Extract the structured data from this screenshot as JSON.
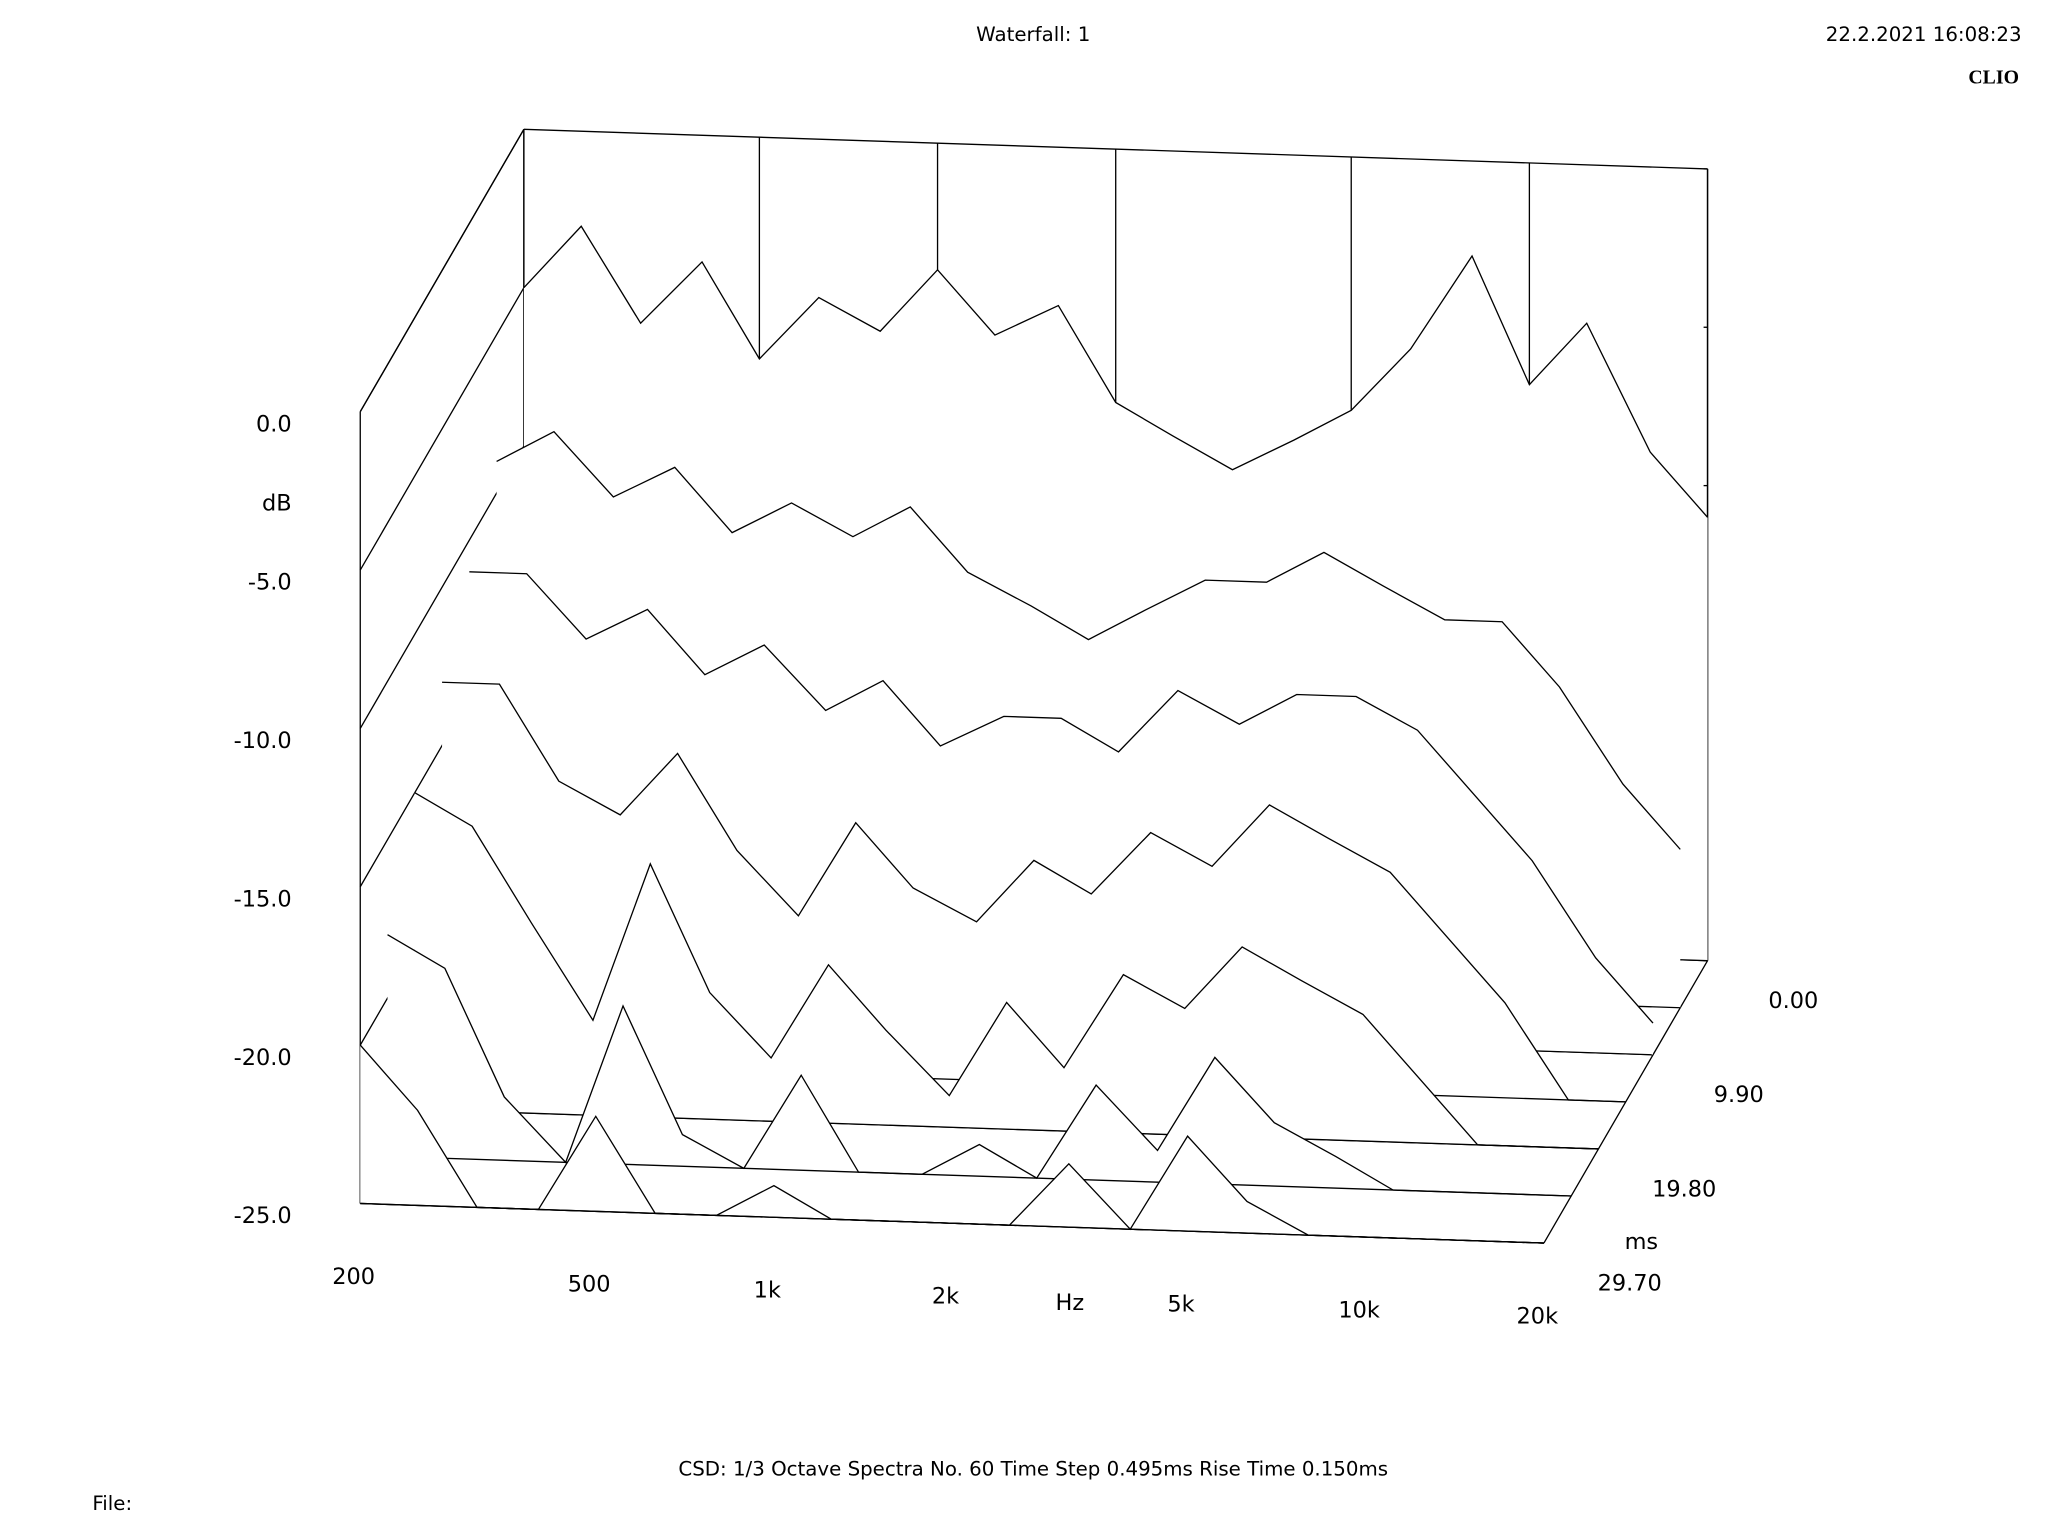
{
  "chart_data": {
    "type": "waterfall",
    "title": "Waterfall: 1",
    "timestamp": "22.2.2021 16:08:23",
    "brand": "CLIO",
    "xlabel": "Hz",
    "ylabel": "dB",
    "zlabel": "ms",
    "footer": "CSD:   1/3 Octave   Spectra No. 60   Time Step 0.495ms   Rise Time 0.150ms",
    "file_label": "File:",
    "log_x": true,
    "xlim": [
      200,
      20000
    ],
    "ylim": [
      -25,
      0
    ],
    "zlim": [
      0,
      29.7
    ],
    "xticks": [
      200,
      500,
      {
        "value": 1000,
        "label": "1k"
      },
      {
        "value": 2000,
        "label": "2k"
      },
      {
        "value": 5000,
        "label": "5k"
      },
      {
        "value": 10000,
        "label": "10k"
      },
      {
        "value": 20000,
        "label": "20k"
      }
    ],
    "yticks": [
      {
        "value": 0,
        "label": "0.0"
      },
      {
        "value": -5,
        "label": "-5.0"
      },
      {
        "value": -10,
        "label": "-10.0"
      },
      {
        "value": -15,
        "label": "-15.0"
      },
      {
        "value": -20,
        "label": "-20.0"
      },
      {
        "value": -25,
        "label": "-25.0"
      }
    ],
    "zticks": [
      {
        "value": 0,
        "label": "0.00"
      },
      {
        "value": 9.9,
        "label": "9.90"
      },
      {
        "value": 19.8,
        "label": "19.80"
      },
      {
        "value": 29.7,
        "label": "29.70"
      }
    ],
    "x": [
      200,
      250,
      315,
      400,
      500,
      630,
      800,
      1000,
      1250,
      1600,
      2000,
      2500,
      3150,
      4000,
      5000,
      6300,
      8000,
      10000,
      12500,
      16000,
      20000
    ],
    "slices": [
      {
        "time": 0,
        "values": [
          -5,
          -3,
          -6,
          -4,
          -7,
          -5,
          -6,
          -4,
          -6,
          -5,
          -8,
          -9,
          -10,
          -9,
          -8,
          -6,
          -3,
          -7,
          -5,
          -9,
          -11
        ]
      },
      {
        "time": 4.95,
        "values": [
          -9,
          -8,
          -10,
          -9,
          -11,
          -10,
          -11,
          -10,
          -12,
          -13,
          -14,
          -13,
          -12,
          -12,
          -11,
          -12,
          -13,
          -13,
          -15,
          -18,
          -20
        ]
      },
      {
        "time": 9.9,
        "values": [
          -11,
          -11,
          -13,
          -12,
          -14,
          -13,
          -15,
          -14,
          -16,
          -15,
          -15,
          -16,
          -14,
          -15,
          -14,
          -14,
          -15,
          -17,
          -19,
          -22,
          -24
        ]
      },
      {
        "time": 14.85,
        "values": [
          -13,
          -13,
          -16,
          -17,
          -15,
          -18,
          -20,
          -17,
          -19,
          -20,
          -18,
          -19,
          -17,
          -18,
          -16,
          -17,
          -18,
          -20,
          -22,
          -25,
          -25
        ]
      },
      {
        "time": 19.8,
        "values": [
          -15,
          -16,
          -19,
          -22,
          -17,
          -21,
          -23,
          -20,
          -22,
          -24,
          -21,
          -23,
          -20,
          -21,
          -19,
          -20,
          -21,
          -23,
          -25,
          -25,
          -25
        ]
      },
      {
        "time": 24.75,
        "values": [
          -18,
          -19,
          -23,
          -25,
          -20,
          -24,
          -25,
          -22,
          -25,
          -25,
          -24,
          -25,
          -22,
          -24,
          -21,
          -23,
          -24,
          -25,
          -25,
          -25,
          -25
        ]
      },
      {
        "time": 29.7,
        "values": [
          -20,
          -22,
          -25,
          -25,
          -22,
          -25,
          -25,
          -24,
          -25,
          -25,
          -25,
          -25,
          -23,
          -25,
          -22,
          -24,
          -25,
          -25,
          -25,
          -25,
          -25
        ]
      }
    ]
  }
}
